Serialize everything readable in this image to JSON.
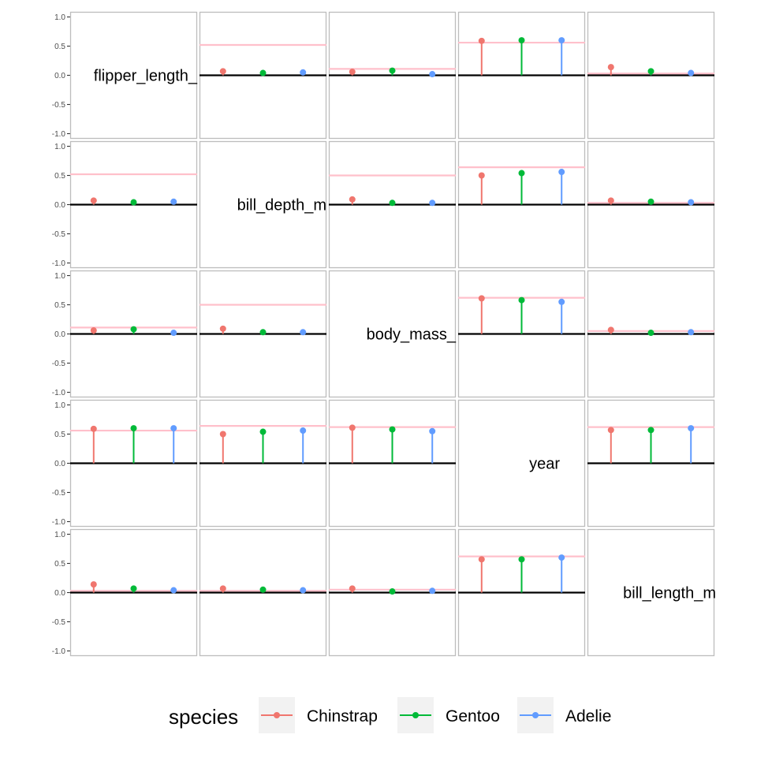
{
  "chart_data": {
    "type": "scatter",
    "subtype": "lollipop-matrix",
    "title": "",
    "variables": [
      "flipper_length_",
      "bill_depth_m",
      "body_mass_",
      "year",
      "bill_length_m"
    ],
    "y_ticks": [
      "1.0",
      "0.5",
      "0.0",
      "-0.5",
      "-1.0"
    ],
    "ylim": [
      -1.0,
      1.0
    ],
    "grid": false,
    "legend": {
      "title": "species",
      "position": "bottom",
      "entries": [
        "Chinstrap",
        "Gentoo",
        "Adelie"
      ]
    },
    "colors": {
      "Chinstrap": "#f0766e",
      "Gentoo": "#00ba38",
      "Adelie": "#619cff",
      "reference_line": "#ffc0cb",
      "zero_line": "#000000",
      "panel_border": "#bdbdbd"
    },
    "series": [
      {
        "name": "Chinstrap",
        "values": [
          [
            null,
            0.07,
            0.06,
            0.59,
            0.14
          ],
          [
            0.07,
            null,
            0.09,
            0.5,
            0.07
          ],
          [
            0.06,
            0.09,
            null,
            0.61,
            0.07
          ],
          [
            0.59,
            0.5,
            0.61,
            null,
            0.57
          ],
          [
            0.14,
            0.07,
            0.07,
            0.57,
            null
          ]
        ]
      },
      {
        "name": "Gentoo",
        "values": [
          [
            null,
            0.04,
            0.08,
            0.6,
            0.07
          ],
          [
            0.04,
            null,
            0.03,
            0.54,
            0.05
          ],
          [
            0.08,
            0.03,
            null,
            0.58,
            0.02
          ],
          [
            0.6,
            0.54,
            0.58,
            null,
            0.57
          ],
          [
            0.07,
            0.05,
            0.02,
            0.57,
            null
          ]
        ]
      },
      {
        "name": "Adelie",
        "values": [
          [
            null,
            0.05,
            0.02,
            0.6,
            0.04
          ],
          [
            0.05,
            null,
            0.03,
            0.56,
            0.04
          ],
          [
            0.02,
            0.03,
            null,
            0.55,
            0.03
          ],
          [
            0.6,
            0.56,
            0.55,
            null,
            0.6
          ],
          [
            0.04,
            0.04,
            0.03,
            0.6,
            null
          ]
        ]
      }
    ],
    "reference_lines": [
      [
        null,
        0.52,
        0.11,
        0.56,
        0.03
      ],
      [
        0.52,
        null,
        0.5,
        0.64,
        0.03
      ],
      [
        0.11,
        0.5,
        null,
        0.62,
        0.05
      ],
      [
        0.56,
        0.64,
        0.62,
        null,
        0.62
      ],
      [
        0.03,
        0.03,
        0.05,
        0.62,
        null
      ]
    ]
  }
}
